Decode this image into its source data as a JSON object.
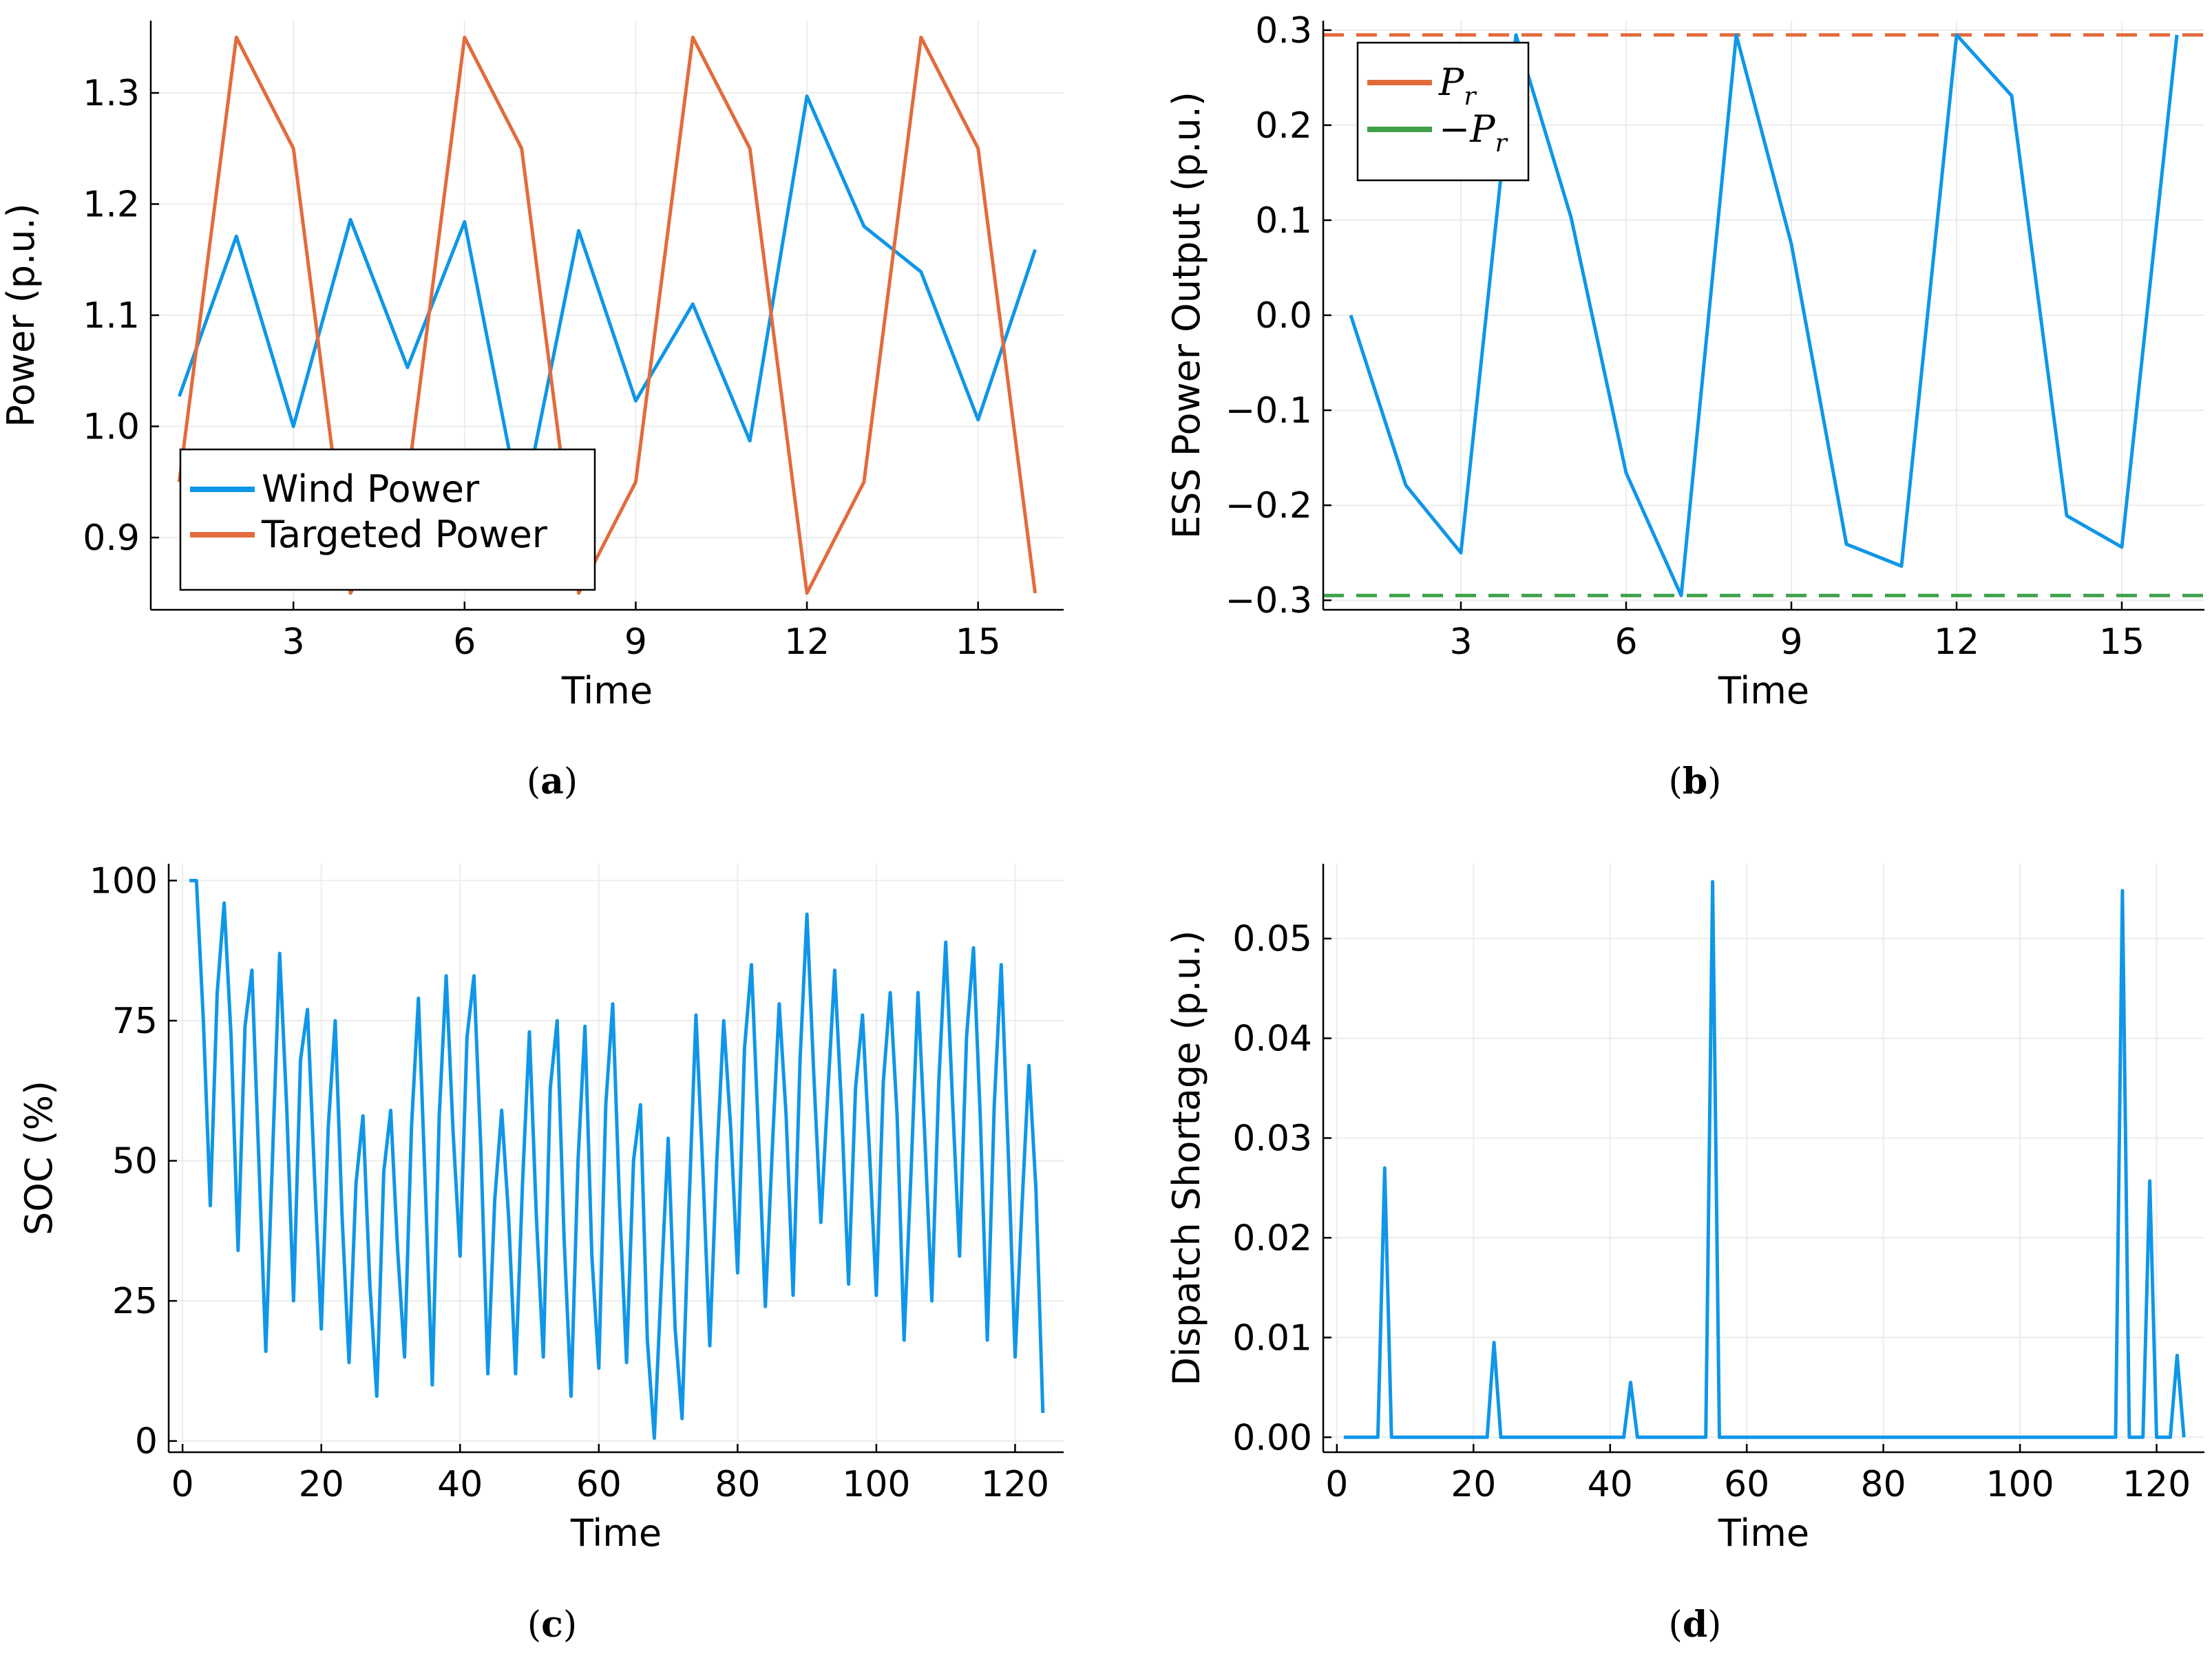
{
  "figure": {
    "captions": [
      {
        "paren_open": "(",
        "letter": "a",
        "paren_close": ")"
      },
      {
        "paren_open": "(",
        "letter": "b",
        "paren_close": ")"
      },
      {
        "paren_open": "(",
        "letter": "c",
        "paren_close": ")"
      },
      {
        "paren_open": "(",
        "letter": "d",
        "paren_close": ")"
      }
    ]
  },
  "colors": {
    "blue": "#0f96e8",
    "orange": "#e26b3c",
    "green": "#3ea14a",
    "grid": "#ececec",
    "axis": "#000000"
  },
  "chart_data": [
    {
      "id": "a",
      "type": "line",
      "title": "",
      "xlabel": "Time",
      "ylabel": "Power (p.u.)",
      "xlim": [
        0.5,
        16.5
      ],
      "ylim": [
        0.835,
        1.365
      ],
      "xticks": [
        3,
        6,
        9,
        12,
        15
      ],
      "xtick_labels": [
        "3",
        "6",
        "9",
        "12",
        "15"
      ],
      "yticks": [
        0.9,
        1.0,
        1.1,
        1.2,
        1.3
      ],
      "ytick_labels": [
        "0.9",
        "1.0",
        "1.1",
        "1.2",
        "1.3"
      ],
      "legend": "bottom-left",
      "series": [
        {
          "name": "Wind Power",
          "color": "blue",
          "x": [
            1,
            2,
            3,
            4,
            5,
            6,
            7,
            8,
            9,
            10,
            11,
            12,
            13,
            14,
            15,
            16
          ],
          "values": [
            1.027,
            1.171,
            1.0,
            1.186,
            1.053,
            1.184,
            0.921,
            1.176,
            1.023,
            1.11,
            0.987,
            1.297,
            1.18,
            1.139,
            1.006,
            1.159
          ]
        },
        {
          "name": "Targeted Power",
          "color": "orange",
          "x": [
            1,
            2,
            3,
            4,
            5,
            6,
            7,
            8,
            9,
            10,
            11,
            12,
            13,
            14,
            15,
            16
          ],
          "values": [
            0.95,
            1.35,
            1.25,
            0.85,
            0.95,
            1.35,
            1.25,
            0.85,
            0.95,
            1.35,
            1.25,
            0.85,
            0.95,
            1.35,
            1.25,
            0.85
          ]
        }
      ]
    },
    {
      "id": "b",
      "type": "line",
      "title": "",
      "xlabel": "Time",
      "ylabel": "ESS Power Output (p.u.)",
      "xlim": [
        0.5,
        16.5
      ],
      "ylim": [
        -0.31,
        0.31
      ],
      "xticks": [
        3,
        6,
        9,
        12,
        15
      ],
      "xtick_labels": [
        "3",
        "6",
        "9",
        "12",
        "15"
      ],
      "yticks": [
        -0.3,
        -0.2,
        -0.1,
        0.0,
        0.1,
        0.2,
        0.3
      ],
      "ytick_labels": [
        "−0.3",
        "−0.2",
        "−0.1",
        "0.0",
        "0.1",
        "0.2",
        "0.3"
      ],
      "legend": "top-left",
      "series": [
        {
          "name": "ESS Power Output",
          "color": "blue",
          "x": [
            1,
            2,
            3,
            4,
            5,
            6,
            7,
            8,
            9,
            10,
            11,
            12,
            13,
            14,
            15,
            16
          ],
          "values": [
            0.0,
            -0.179,
            -0.25,
            0.295,
            0.103,
            -0.166,
            -0.295,
            0.295,
            0.075,
            -0.241,
            -0.264,
            0.295,
            0.231,
            -0.211,
            -0.244,
            0.295
          ]
        }
      ],
      "reference_lines": [
        {
          "legend_label_main": "P",
          "legend_label_sub": "r",
          "legend_prefix": "",
          "value": 0.295,
          "color": "orange",
          "style": "dashed"
        },
        {
          "legend_label_main": "P",
          "legend_label_sub": "r",
          "legend_prefix": "−",
          "value": -0.295,
          "color": "green",
          "style": "dashed"
        }
      ]
    },
    {
      "id": "c",
      "type": "line",
      "title": "",
      "xlabel": "Time",
      "ylabel": "SOC (%)",
      "xlim": [
        -2,
        127
      ],
      "ylim": [
        -2,
        103
      ],
      "xticks": [
        0,
        20,
        40,
        60,
        80,
        100,
        120
      ],
      "xtick_labels": [
        "0",
        "20",
        "40",
        "60",
        "80",
        "100",
        "120"
      ],
      "yticks": [
        0,
        25,
        50,
        75,
        100
      ],
      "ytick_labels": [
        "0",
        "25",
        "50",
        "75",
        "100"
      ],
      "legend": "none",
      "series": [
        {
          "name": "SOC",
          "color": "blue",
          "x": [
            1,
            2,
            3,
            4,
            5,
            6,
            7,
            8,
            9,
            10,
            11,
            12,
            13,
            14,
            15,
            16,
            17,
            18,
            19,
            20,
            21,
            22,
            23,
            24,
            25,
            26,
            27,
            28,
            29,
            30,
            31,
            32,
            33,
            34,
            35,
            36,
            37,
            38,
            39,
            40,
            41,
            42,
            43,
            44,
            45,
            46,
            47,
            48,
            49,
            50,
            51,
            52,
            53,
            54,
            55,
            56,
            57,
            58,
            59,
            60,
            61,
            62,
            63,
            64,
            65,
            66,
            67,
            68,
            69,
            70,
            71,
            72,
            73,
            74,
            75,
            76,
            77,
            78,
            79,
            80,
            81,
            82,
            83,
            84,
            85,
            86,
            87,
            88,
            89,
            90,
            91,
            92,
            93,
            94,
            95,
            96,
            97,
            98,
            99,
            100,
            101,
            102,
            103,
            104,
            105,
            106,
            107,
            108,
            109,
            110,
            111,
            112,
            113,
            114,
            115,
            116,
            117,
            118,
            119,
            120,
            121,
            122,
            123,
            124
          ],
          "values": [
            100,
            100,
            75,
            42,
            80,
            96,
            72,
            34,
            74,
            84,
            50,
            16,
            52,
            87,
            60,
            25,
            68,
            77,
            48,
            20,
            56,
            75,
            40,
            14,
            46,
            58,
            28,
            8,
            48,
            59,
            34,
            15,
            56,
            79,
            45,
            10,
            58,
            83,
            55,
            33,
            72,
            83,
            52,
            12,
            43,
            59,
            40,
            12,
            46,
            73,
            40,
            15,
            63,
            75,
            36,
            8,
            50,
            74,
            33,
            13,
            60,
            78,
            42,
            14,
            50,
            60,
            18,
            0.5,
            28,
            54,
            20,
            4,
            42,
            76,
            48,
            17,
            50,
            75,
            56,
            30,
            70,
            85,
            55,
            24,
            52,
            78,
            58,
            26,
            68,
            94,
            65,
            39,
            62,
            84,
            59,
            28,
            63,
            76,
            52,
            26,
            64,
            80,
            58,
            18,
            48,
            80,
            54,
            25,
            64,
            89,
            60,
            33,
            72,
            88,
            57,
            18,
            60,
            85,
            52,
            15,
            42,
            67,
            45,
            5
          ]
        }
      ]
    },
    {
      "id": "d",
      "type": "line",
      "title": "",
      "xlabel": "Time",
      "ylabel": "Dispatch Shortage (p.u.)",
      "xlim": [
        -2,
        127
      ],
      "ylim": [
        -0.0015,
        0.0575
      ],
      "xticks": [
        0,
        20,
        40,
        60,
        80,
        100,
        120
      ],
      "xtick_labels": [
        "0",
        "20",
        "40",
        "60",
        "80",
        "100",
        "120"
      ],
      "yticks": [
        0.0,
        0.01,
        0.02,
        0.03,
        0.04,
        0.05
      ],
      "ytick_labels": [
        "0.00",
        "0.01",
        "0.02",
        "0.03",
        "0.04",
        "0.05"
      ],
      "legend": "none",
      "series": [
        {
          "name": "Dispatch Shortage",
          "color": "blue",
          "x": [
            1,
            6,
            7,
            8,
            22,
            23,
            24,
            42,
            43,
            44,
            54,
            55,
            56,
            114,
            115,
            116,
            118,
            119,
            120,
            122,
            123,
            124
          ],
          "values": [
            0,
            0,
            0.027,
            0,
            0,
            0.0095,
            0,
            0,
            0.0055,
            0,
            0,
            0.0557,
            0,
            0,
            0.0548,
            0,
            0,
            0.0257,
            0,
            0,
            0.0082,
            0
          ]
        }
      ]
    }
  ]
}
